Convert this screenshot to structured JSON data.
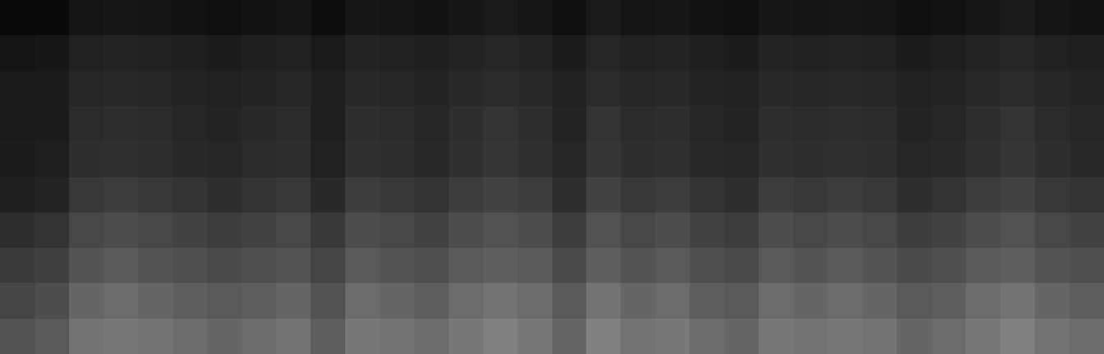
{
  "chart_data": {
    "type": "heatmap",
    "tick_labels": false,
    "zlim": [
      0,
      100
    ],
    "cells": [
      [
        3,
        4,
        8,
        9,
        8,
        7,
        6,
        7,
        8,
        5,
        9,
        8,
        7,
        9,
        10,
        9,
        6,
        10,
        8,
        9,
        7,
        6,
        9,
        8,
        9,
        8,
        6,
        7,
        9,
        10,
        8,
        7
      ],
      [
        8,
        9,
        13,
        14,
        13,
        12,
        11,
        12,
        13,
        10,
        14,
        13,
        12,
        14,
        15,
        14,
        11,
        15,
        13,
        14,
        12,
        11,
        14,
        13,
        14,
        13,
        11,
        12,
        14,
        15,
        13,
        12
      ],
      [
        10,
        11,
        15,
        16,
        15,
        14,
        13,
        14,
        15,
        12,
        16,
        15,
        14,
        16,
        17,
        16,
        13,
        17,
        15,
        16,
        14,
        13,
        16,
        15,
        16,
        15,
        13,
        14,
        16,
        17,
        15,
        14
      ],
      [
        10,
        11,
        17,
        18,
        17,
        15,
        14,
        16,
        17,
        12,
        18,
        17,
        15,
        18,
        20,
        18,
        14,
        20,
        17,
        18,
        15,
        14,
        18,
        17,
        18,
        17,
        14,
        15,
        18,
        20,
        17,
        15
      ],
      [
        11,
        12,
        18,
        19,
        18,
        16,
        15,
        17,
        18,
        13,
        19,
        18,
        16,
        19,
        21,
        19,
        15,
        21,
        18,
        19,
        16,
        15,
        19,
        18,
        19,
        18,
        15,
        16,
        19,
        21,
        18,
        16
      ],
      [
        12,
        14,
        22,
        24,
        22,
        20,
        18,
        20,
        22,
        16,
        24,
        22,
        20,
        24,
        26,
        24,
        18,
        26,
        22,
        24,
        20,
        18,
        24,
        22,
        24,
        22,
        18,
        20,
        24,
        26,
        22,
        20
      ],
      [
        18,
        20,
        28,
        30,
        28,
        26,
        24,
        26,
        28,
        22,
        30,
        28,
        26,
        30,
        32,
        30,
        24,
        32,
        28,
        30,
        26,
        24,
        30,
        28,
        30,
        28,
        24,
        26,
        30,
        32,
        28,
        26
      ],
      [
        23,
        25,
        33,
        35,
        33,
        31,
        29,
        31,
        33,
        27,
        35,
        33,
        31,
        35,
        37,
        35,
        29,
        37,
        33,
        35,
        31,
        29,
        35,
        33,
        35,
        33,
        29,
        31,
        35,
        37,
        33,
        31
      ],
      [
        27,
        30,
        40,
        42,
        40,
        37,
        35,
        37,
        40,
        32,
        42,
        40,
        37,
        42,
        45,
        42,
        35,
        45,
        40,
        42,
        37,
        35,
        42,
        40,
        42,
        40,
        35,
        37,
        42,
        45,
        40,
        37
      ],
      [
        32,
        35,
        45,
        47,
        45,
        42,
        40,
        42,
        45,
        37,
        47,
        45,
        42,
        47,
        50,
        47,
        40,
        50,
        45,
        47,
        42,
        40,
        47,
        45,
        47,
        45,
        40,
        42,
        47,
        50,
        45,
        42
      ]
    ]
  }
}
